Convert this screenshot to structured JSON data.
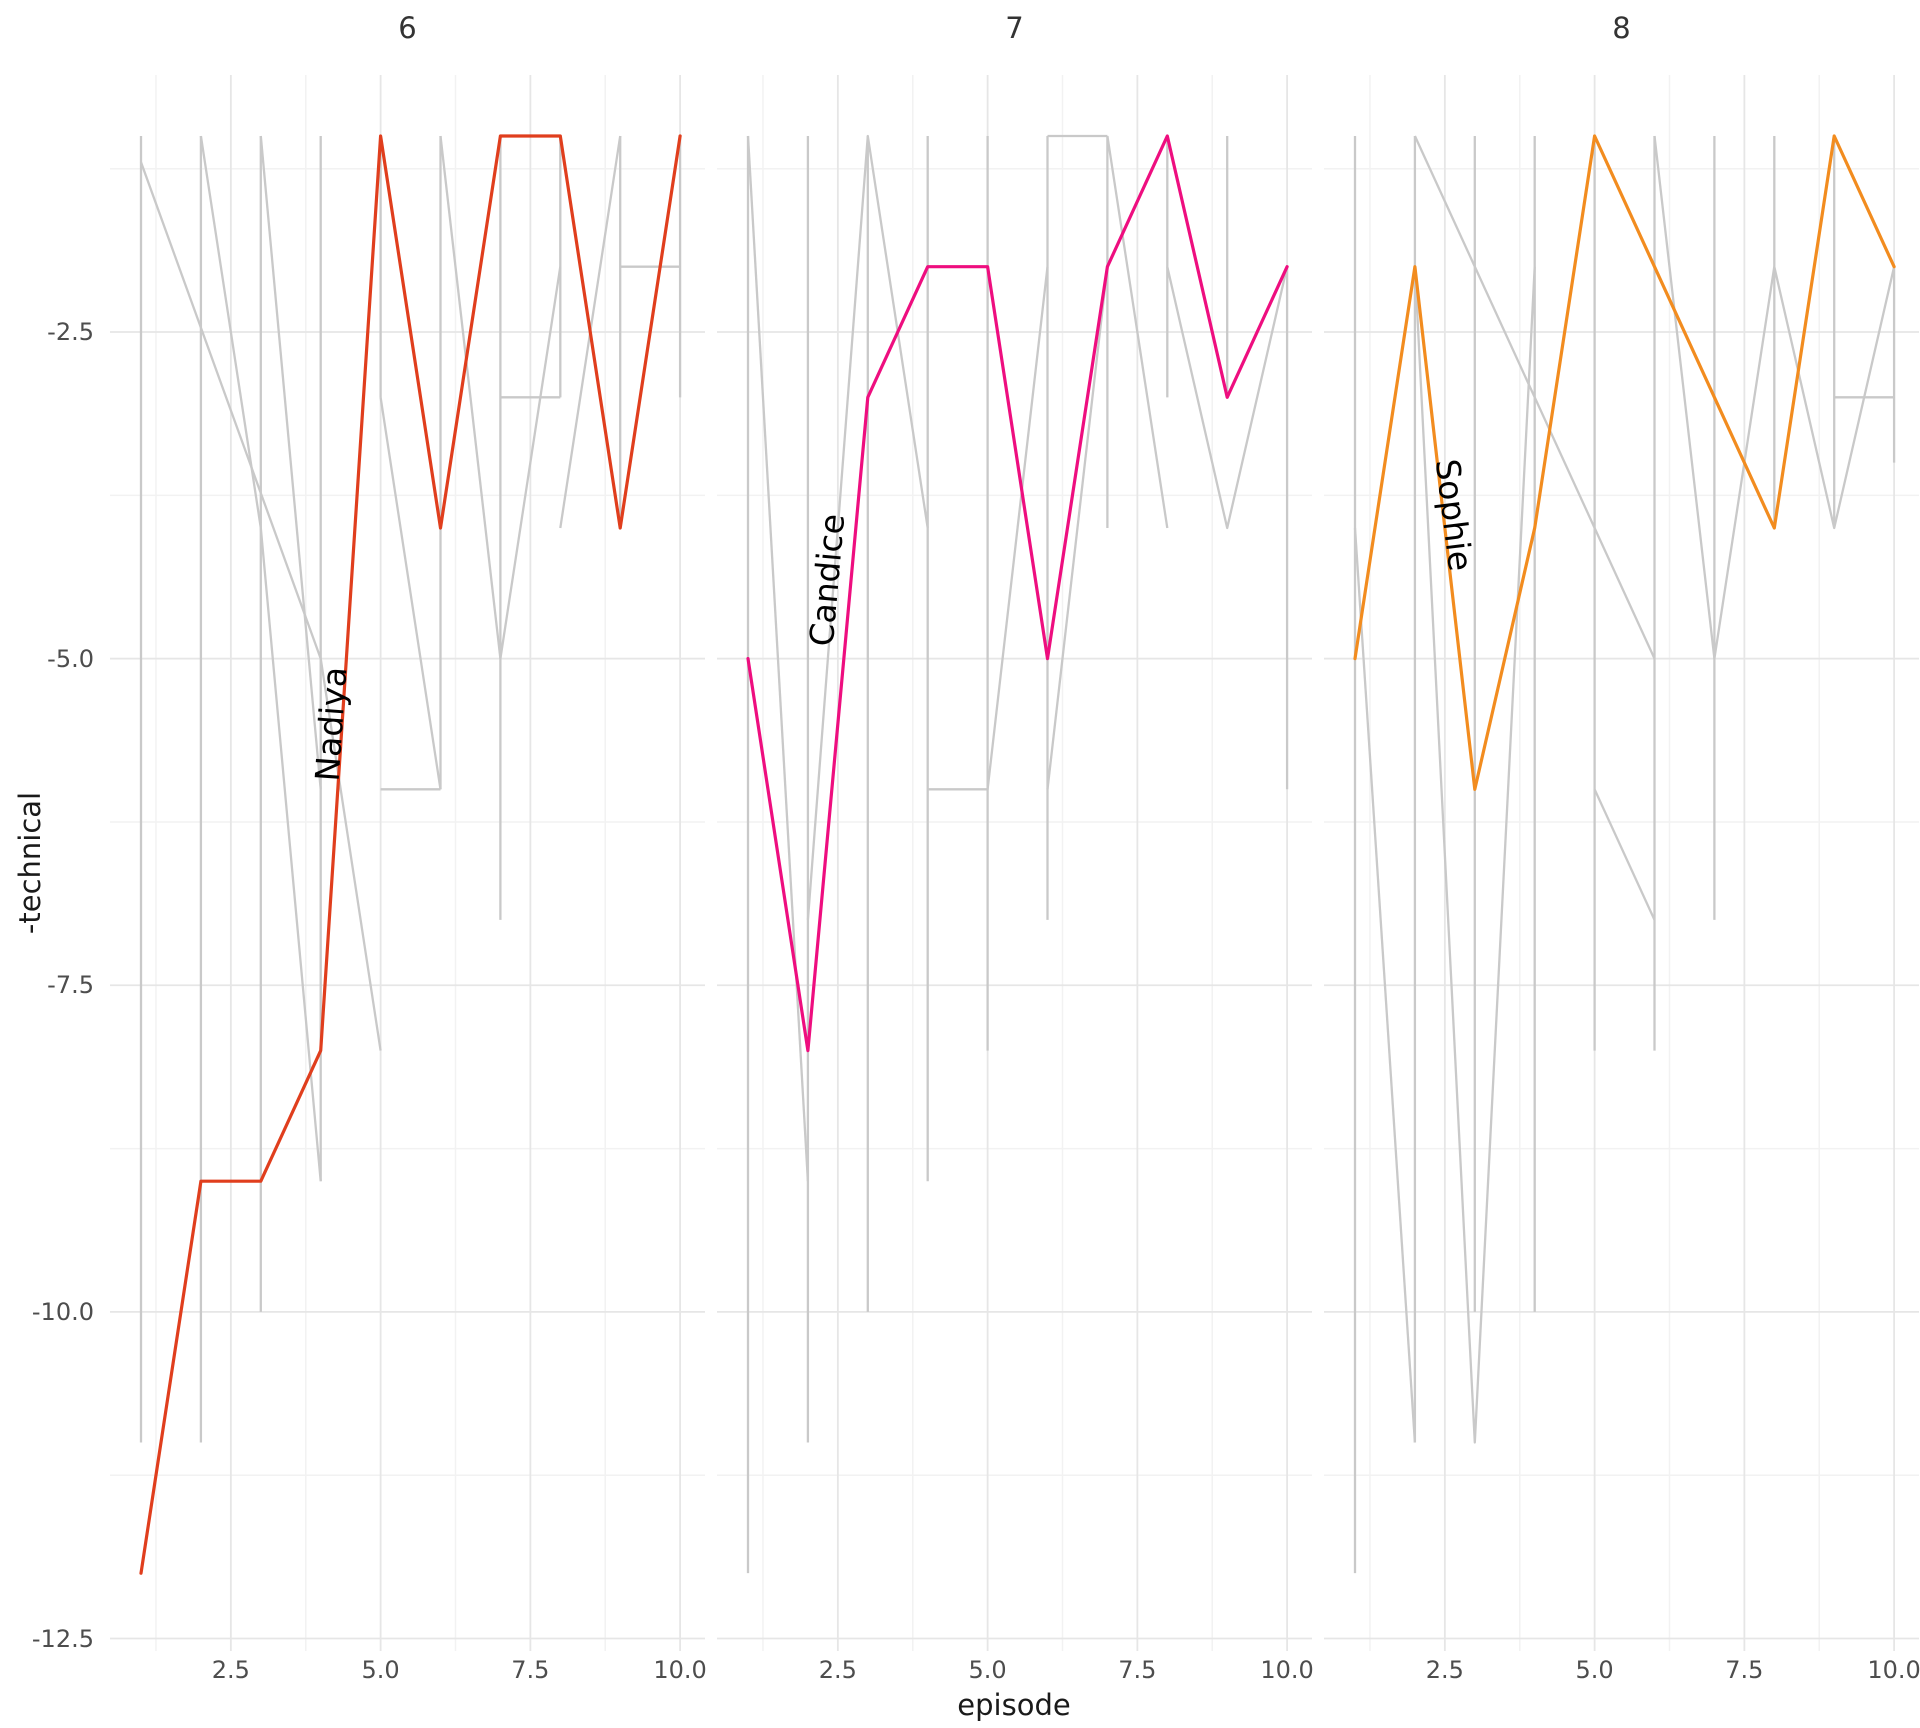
{
  "accent_colors": {
    "nadiya": "#E03E1D",
    "candice": "#EE0E7F",
    "sophie": "#F28C1F",
    "background_lines": "#C9C9C9",
    "grid_major": "#E6E6E6",
    "grid_minor": "#F2F2F2",
    "tick_text": "#4d4d4d",
    "title_text": "#1a1a1a"
  },
  "chart_data": {
    "type": "line",
    "title": "",
    "xlabel": "episode",
    "ylabel": "-technical",
    "x": [
      1,
      2,
      3,
      4,
      5,
      6,
      7,
      8,
      9,
      10
    ],
    "x_ticks": [
      2.5,
      5.0,
      7.5,
      10.0
    ],
    "x_tick_labels": [
      "2.5",
      "5.0",
      "7.5",
      "10.0"
    ],
    "y_ticks": [
      -2.5,
      -5.0,
      -7.5,
      -10.0,
      -12.5
    ],
    "y_tick_labels": [
      "-2.5",
      "-5.0",
      "-7.5",
      "-10.0",
      "-12.5"
    ],
    "x_minor_ticks": [
      1.25,
      3.75,
      6.25,
      8.75
    ],
    "y_minor_ticks": [
      -1.25,
      -3.75,
      -6.25,
      -8.75,
      -11.25
    ],
    "xlim": [
      0.45,
      10.55
    ],
    "ylim": [
      -12.6,
      -0.55
    ],
    "grid": "on",
    "legend_position": "none",
    "facet_variable": "series",
    "panels": [
      {
        "facet_title": "6",
        "highlight_name": "Nadiya",
        "highlight_color": "#E03E1D",
        "episodes": [
          1,
          2,
          3,
          4,
          5,
          6,
          7,
          8,
          9,
          10
        ],
        "values": [
          -12,
          -9,
          -9,
          -8,
          -1,
          -4,
          -1,
          -1,
          -4,
          -1
        ],
        "label": {
          "text": "Nadiya",
          "at_episode": 4.35,
          "at_value": -5.5,
          "rotation": -86,
          "offset_x": -11
        },
        "range_lines": [
          [
            1,
            -1,
            -11
          ],
          [
            2,
            -1,
            -11
          ],
          [
            3,
            -1,
            -10
          ],
          [
            4,
            -1,
            -9
          ],
          [
            5,
            -1,
            -3
          ],
          [
            6,
            -1,
            -6
          ],
          [
            7,
            -1,
            -7
          ],
          [
            8,
            -1,
            -3
          ],
          [
            9,
            -1,
            -4
          ],
          [
            10,
            -1,
            -3
          ]
        ],
        "other_lines": [
          [
            [
              1,
              -1.2
            ],
            [
              4,
              -5
            ],
            [
              5,
              -8
            ]
          ],
          [
            [
              2,
              -1
            ],
            [
              3,
              -4
            ],
            [
              4,
              -9
            ]
          ],
          [
            [
              3,
              -1
            ],
            [
              4,
              -6
            ]
          ],
          [
            [
              5,
              -3
            ],
            [
              6,
              -6
            ]
          ],
          [
            [
              5,
              -6
            ],
            [
              6,
              -6
            ]
          ],
          [
            [
              6,
              -1
            ],
            [
              7,
              -5
            ]
          ],
          [
            [
              7,
              -5
            ],
            [
              8,
              -2
            ]
          ],
          [
            [
              7,
              -3
            ],
            [
              8,
              -3
            ]
          ],
          [
            [
              8,
              -4
            ],
            [
              9,
              -1
            ]
          ],
          [
            [
              9,
              -2
            ],
            [
              10,
              -2
            ]
          ]
        ]
      },
      {
        "facet_title": "7",
        "highlight_name": "Candice",
        "highlight_color": "#EE0E7F",
        "episodes": [
          1,
          2,
          3,
          4,
          5,
          6,
          7,
          8,
          9,
          10
        ],
        "values": [
          -5,
          -8,
          -3,
          -2,
          -2,
          -5,
          -2,
          -1,
          -3,
          -2
        ],
        "label": {
          "text": "Candice",
          "at_episode": 2.72,
          "at_value": -4.4,
          "rotation": -85,
          "offset_x": -24
        },
        "range_lines": [
          [
            1,
            -1,
            -12
          ],
          [
            2,
            -1,
            -11
          ],
          [
            3,
            -1,
            -10
          ],
          [
            4,
            -1,
            -9
          ],
          [
            5,
            -1,
            -8
          ],
          [
            6,
            -1,
            -7
          ],
          [
            7,
            -1,
            -4
          ],
          [
            8,
            -1,
            -3
          ],
          [
            9,
            -1,
            -3
          ],
          [
            10,
            -2,
            -6
          ]
        ],
        "other_lines": [
          [
            [
              1,
              -1
            ],
            [
              2,
              -9
            ]
          ],
          [
            [
              2,
              -7
            ],
            [
              3,
              -1
            ],
            [
              4,
              -4
            ]
          ],
          [
            [
              4,
              -6
            ],
            [
              5,
              -6
            ],
            [
              6,
              -2
            ]
          ],
          [
            [
              6,
              -1
            ],
            [
              7,
              -1
            ]
          ],
          [
            [
              6,
              -6
            ],
            [
              7,
              -2
            ]
          ],
          [
            [
              7,
              -1
            ],
            [
              8,
              -4
            ]
          ],
          [
            [
              8,
              -2
            ],
            [
              9,
              -4
            ],
            [
              10,
              -2
            ]
          ]
        ]
      },
      {
        "facet_title": "8",
        "highlight_name": "Sophie",
        "highlight_color": "#F28C1F",
        "episodes": [
          1,
          2,
          3,
          4,
          5,
          6,
          7,
          8,
          9,
          10
        ],
        "values": [
          -5,
          -2,
          -6,
          -4,
          -1,
          -2,
          -3,
          -4,
          -1,
          -2
        ],
        "label": {
          "text": "Sophie",
          "at_episode": 2.48,
          "at_value": -3.9,
          "rotation": 83,
          "offset_x": 10
        },
        "range_lines": [
          [
            1,
            -1,
            -12
          ],
          [
            2,
            -1,
            -11
          ],
          [
            3,
            -1,
            -10
          ],
          [
            4,
            -1,
            -10
          ],
          [
            5,
            -1,
            -8
          ],
          [
            6,
            -1,
            -8
          ],
          [
            7,
            -1,
            -7
          ],
          [
            8,
            -1,
            -4
          ],
          [
            9,
            -1,
            -4
          ],
          [
            10,
            -2,
            -3.5
          ]
        ],
        "other_lines": [
          [
            [
              1,
              -4
            ],
            [
              2,
              -11
            ]
          ],
          [
            [
              2,
              -1
            ],
            [
              6,
              -5
            ]
          ],
          [
            [
              2,
              -2
            ],
            [
              3,
              -11
            ],
            [
              4,
              -2
            ]
          ],
          [
            [
              5,
              -6
            ],
            [
              6,
              -7
            ]
          ],
          [
            [
              6,
              -1
            ],
            [
              7,
              -5
            ],
            [
              8,
              -2
            ]
          ],
          [
            [
              8,
              -2
            ],
            [
              9,
              -4
            ],
            [
              10,
              -2
            ]
          ],
          [
            [
              9,
              -3
            ],
            [
              10,
              -3
            ]
          ]
        ]
      }
    ]
  },
  "layout_note_visible_text_only": true
}
